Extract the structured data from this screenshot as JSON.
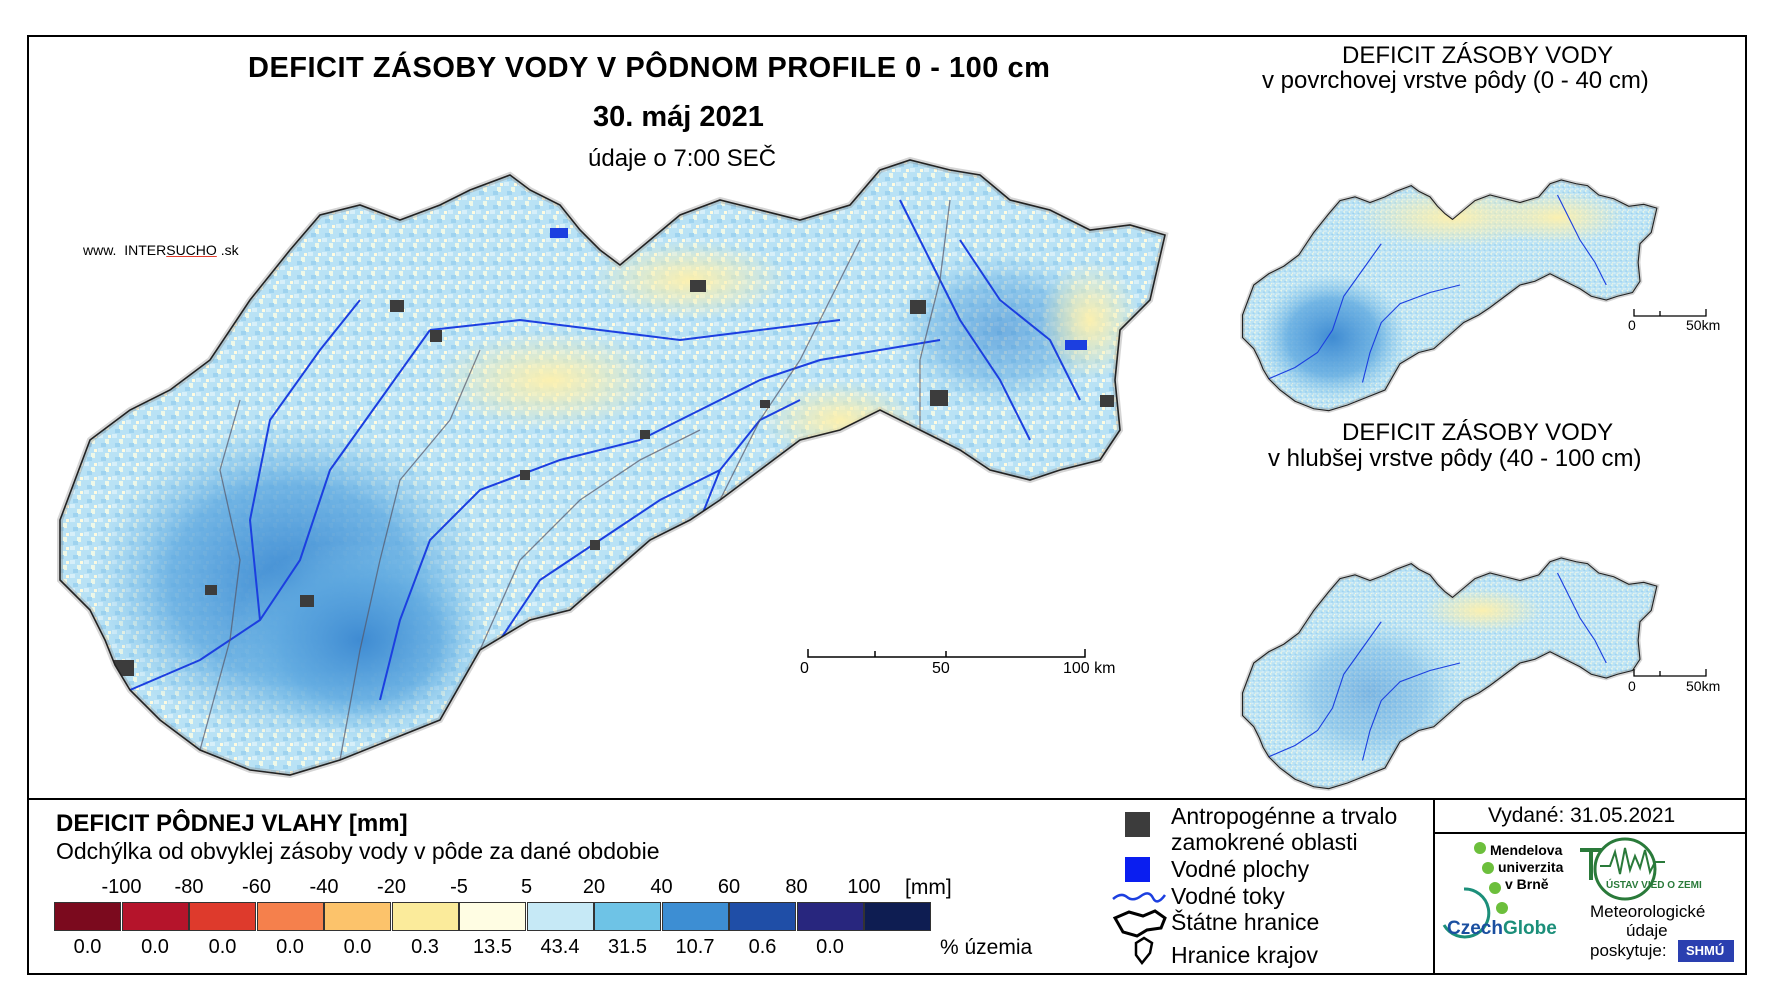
{
  "map": {
    "title": "DEFICIT ZÁSOBY VODY V PÔDNOM PROFILE 0 - 100 cm",
    "date": "30. máj 2021",
    "time_note": "údaje o 7:00 SEČ",
    "website": {
      "prefix": "www.",
      "brand_a": "INTER",
      "brand_b": "SUCHO",
      "suffix": ".sk"
    },
    "scale": {
      "labels": [
        "0",
        "50",
        "100 km"
      ]
    }
  },
  "inset_surface": {
    "title_line1": "DEFICIT ZÁSOBY VODY",
    "title_line2": "v povrchovej vrstve pôdy (0 - 40 cm)",
    "scale": {
      "labels": [
        "0",
        "50km"
      ]
    }
  },
  "inset_deep": {
    "title_line1": "DEFICIT ZÁSOBY VODY",
    "title_line2": "v hlubšej vrstve pôdy (40 - 100 cm)",
    "scale": {
      "labels": [
        "0",
        "50km"
      ]
    }
  },
  "legend": {
    "title": "DEFICIT PÔDNEJ VLAHY [mm]",
    "subtitle": "Odchýlka od obvyklej zásoby vody v pôde za dané obdobie",
    "unit": "[mm]",
    "pct_label": "% územia",
    "class_bounds": [
      "-100",
      "-80",
      "-60",
      "-40",
      "-20",
      "-5",
      "5",
      "20",
      "40",
      "60",
      "80",
      "100"
    ],
    "classes": [
      {
        "color": "#7b0a1e",
        "pct": "0.0"
      },
      {
        "color": "#b5142b",
        "pct": "0.0"
      },
      {
        "color": "#de3a2c",
        "pct": "0.0"
      },
      {
        "color": "#f5804c",
        "pct": "0.0"
      },
      {
        "color": "#fcc36b",
        "pct": "0.0"
      },
      {
        "color": "#fbeb9b",
        "pct": "0.3"
      },
      {
        "color": "#fffde3",
        "pct": "13.5"
      },
      {
        "color": "#c6e9f6",
        "pct": "43.4"
      },
      {
        "color": "#6ec3e6",
        "pct": "31.5"
      },
      {
        "color": "#3d8ed3",
        "pct": "10.7"
      },
      {
        "color": "#1f4ea7",
        "pct": "0.6"
      },
      {
        "color": "#28267e",
        "pct": "0.0"
      },
      {
        "color": "#0e1d52",
        "pct": ""
      }
    ]
  },
  "symbols": {
    "urban": "Antropogénne a trvalo",
    "urban2": "zamokrené oblasti",
    "water": "Vodné plochy",
    "rivers": "Vodné toky",
    "border": "Štátne hranice",
    "regions": "Hranice krajov"
  },
  "credits": {
    "issued": "Vydané: 31.05.2021",
    "mendel1": "Mendelova",
    "mendel2": "univerzita",
    "mendel3": "v Brně",
    "uvgz": "ÚSTAV VIED O ZEMI",
    "czechglobe_a": "Czech",
    "czechglobe_b": "Globe",
    "meteo1": "Meteorologické",
    "meteo2": "údaje",
    "meteo3": "poskytuje:",
    "shmu": "SHMÚ"
  }
}
